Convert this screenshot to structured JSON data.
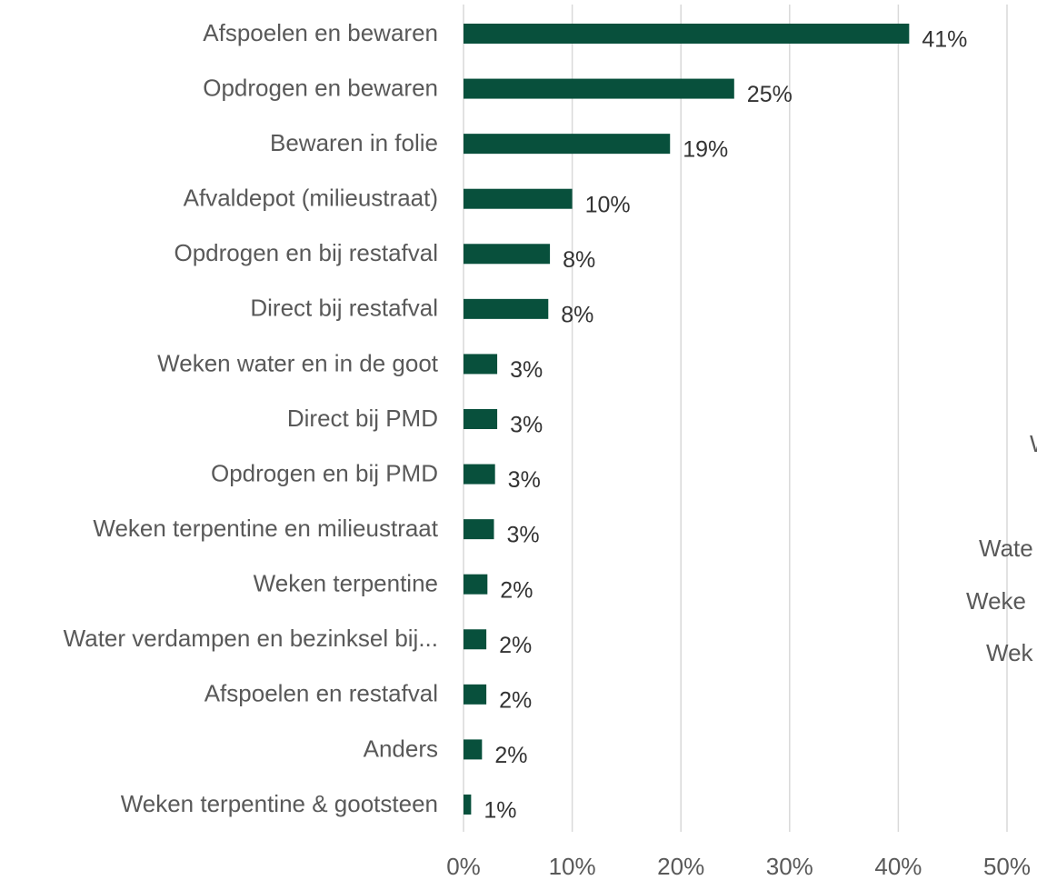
{
  "chart_data": [
    {
      "type": "bar",
      "orientation": "horizontal",
      "color": "#08503c",
      "grid": true,
      "categories": [
        "Afspoelen en bewaren",
        "Opdrogen en bewaren",
        "Bewaren in folie",
        "Afvaldepot (milieustraat)",
        "Opdrogen en bij restafval",
        "Direct bij restafval",
        "Weken water en in de goot",
        "Direct bij PMD",
        "Opdrogen en bij PMD",
        "Weken terpentine en milieustraat",
        "Weken terpentine",
        "Water verdampen en bezinksel bij...",
        "Afspoelen en restafval",
        "Anders",
        "Weken terpentine & gootsteen"
      ],
      "values": [
        41.0,
        24.9,
        19.0,
        10.0,
        7.95,
        7.8,
        3.1,
        3.1,
        2.9,
        2.8,
        2.2,
        2.1,
        2.1,
        1.7,
        0.7
      ],
      "value_labels": [
        "41%",
        "25%",
        "19%",
        "10%",
        "8%",
        "8%",
        "3%",
        "3%",
        "3%",
        "3%",
        "2%",
        "2%",
        "2%",
        "2%",
        "1%"
      ],
      "xlim": [
        0,
        50
      ],
      "xticks": [
        {
          "value": 0,
          "label": "0%"
        },
        {
          "value": 10,
          "label": "10%"
        },
        {
          "value": 20,
          "label": "20%"
        },
        {
          "value": 30,
          "label": "30%"
        },
        {
          "value": 40,
          "label": "40%"
        },
        {
          "value": 50,
          "label": "50%"
        }
      ]
    },
    {
      "type": "bar",
      "orientation": "horizontal",
      "categories": [
        "W",
        "Wate",
        "Weke",
        "Wek"
      ]
    }
  ]
}
